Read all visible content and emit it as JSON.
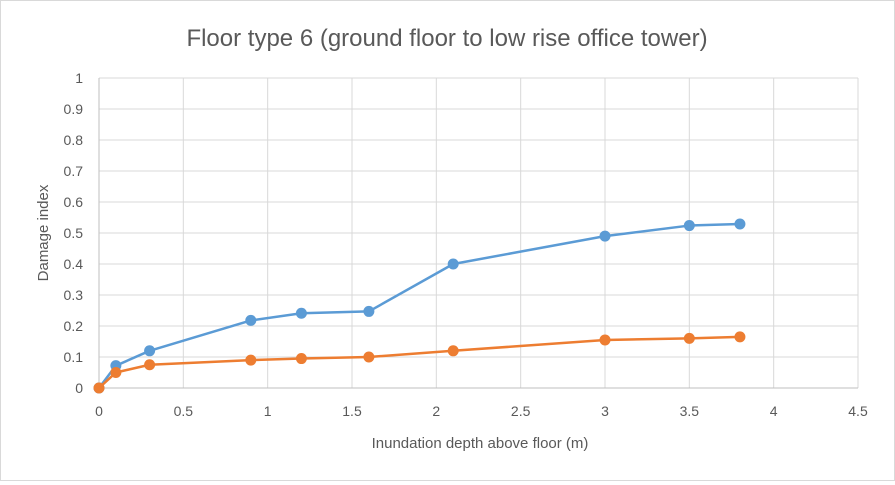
{
  "chart_data": {
    "type": "line",
    "title": "Floor type 6 (ground floor to low rise office tower)",
    "xlabel": "Inundation depth above floor (m)",
    "ylabel": "Damage index",
    "xlim": [
      0,
      4.5
    ],
    "ylim": [
      0,
      1
    ],
    "xticks": [
      "0",
      "0.5",
      "1",
      "1.5",
      "2",
      "2.5",
      "3",
      "3.5",
      "4",
      "4.5"
    ],
    "yticks": [
      "0",
      "0.1",
      "0.2",
      "0.3",
      "0.4",
      "0.5",
      "0.6",
      "0.7",
      "0.8",
      "0.9",
      "1"
    ],
    "grid": true,
    "series": [
      {
        "color": "#5b9bd5",
        "x": [
          0,
          0.1,
          0.3,
          0.9,
          1.2,
          1.6,
          2.1,
          3,
          3.5,
          3.8
        ],
        "y": [
          0,
          0.072,
          0.12,
          0.218,
          0.241,
          0.247,
          0.4,
          0.49,
          0.524,
          0.529
        ]
      },
      {
        "color": "#ed7d31",
        "x": [
          0,
          0.1,
          0.3,
          0.9,
          1.2,
          1.6,
          2.1,
          3,
          3.5,
          3.8
        ],
        "y": [
          0,
          0.05,
          0.075,
          0.09,
          0.095,
          0.1,
          0.12,
          0.155,
          0.16,
          0.165
        ]
      }
    ]
  }
}
